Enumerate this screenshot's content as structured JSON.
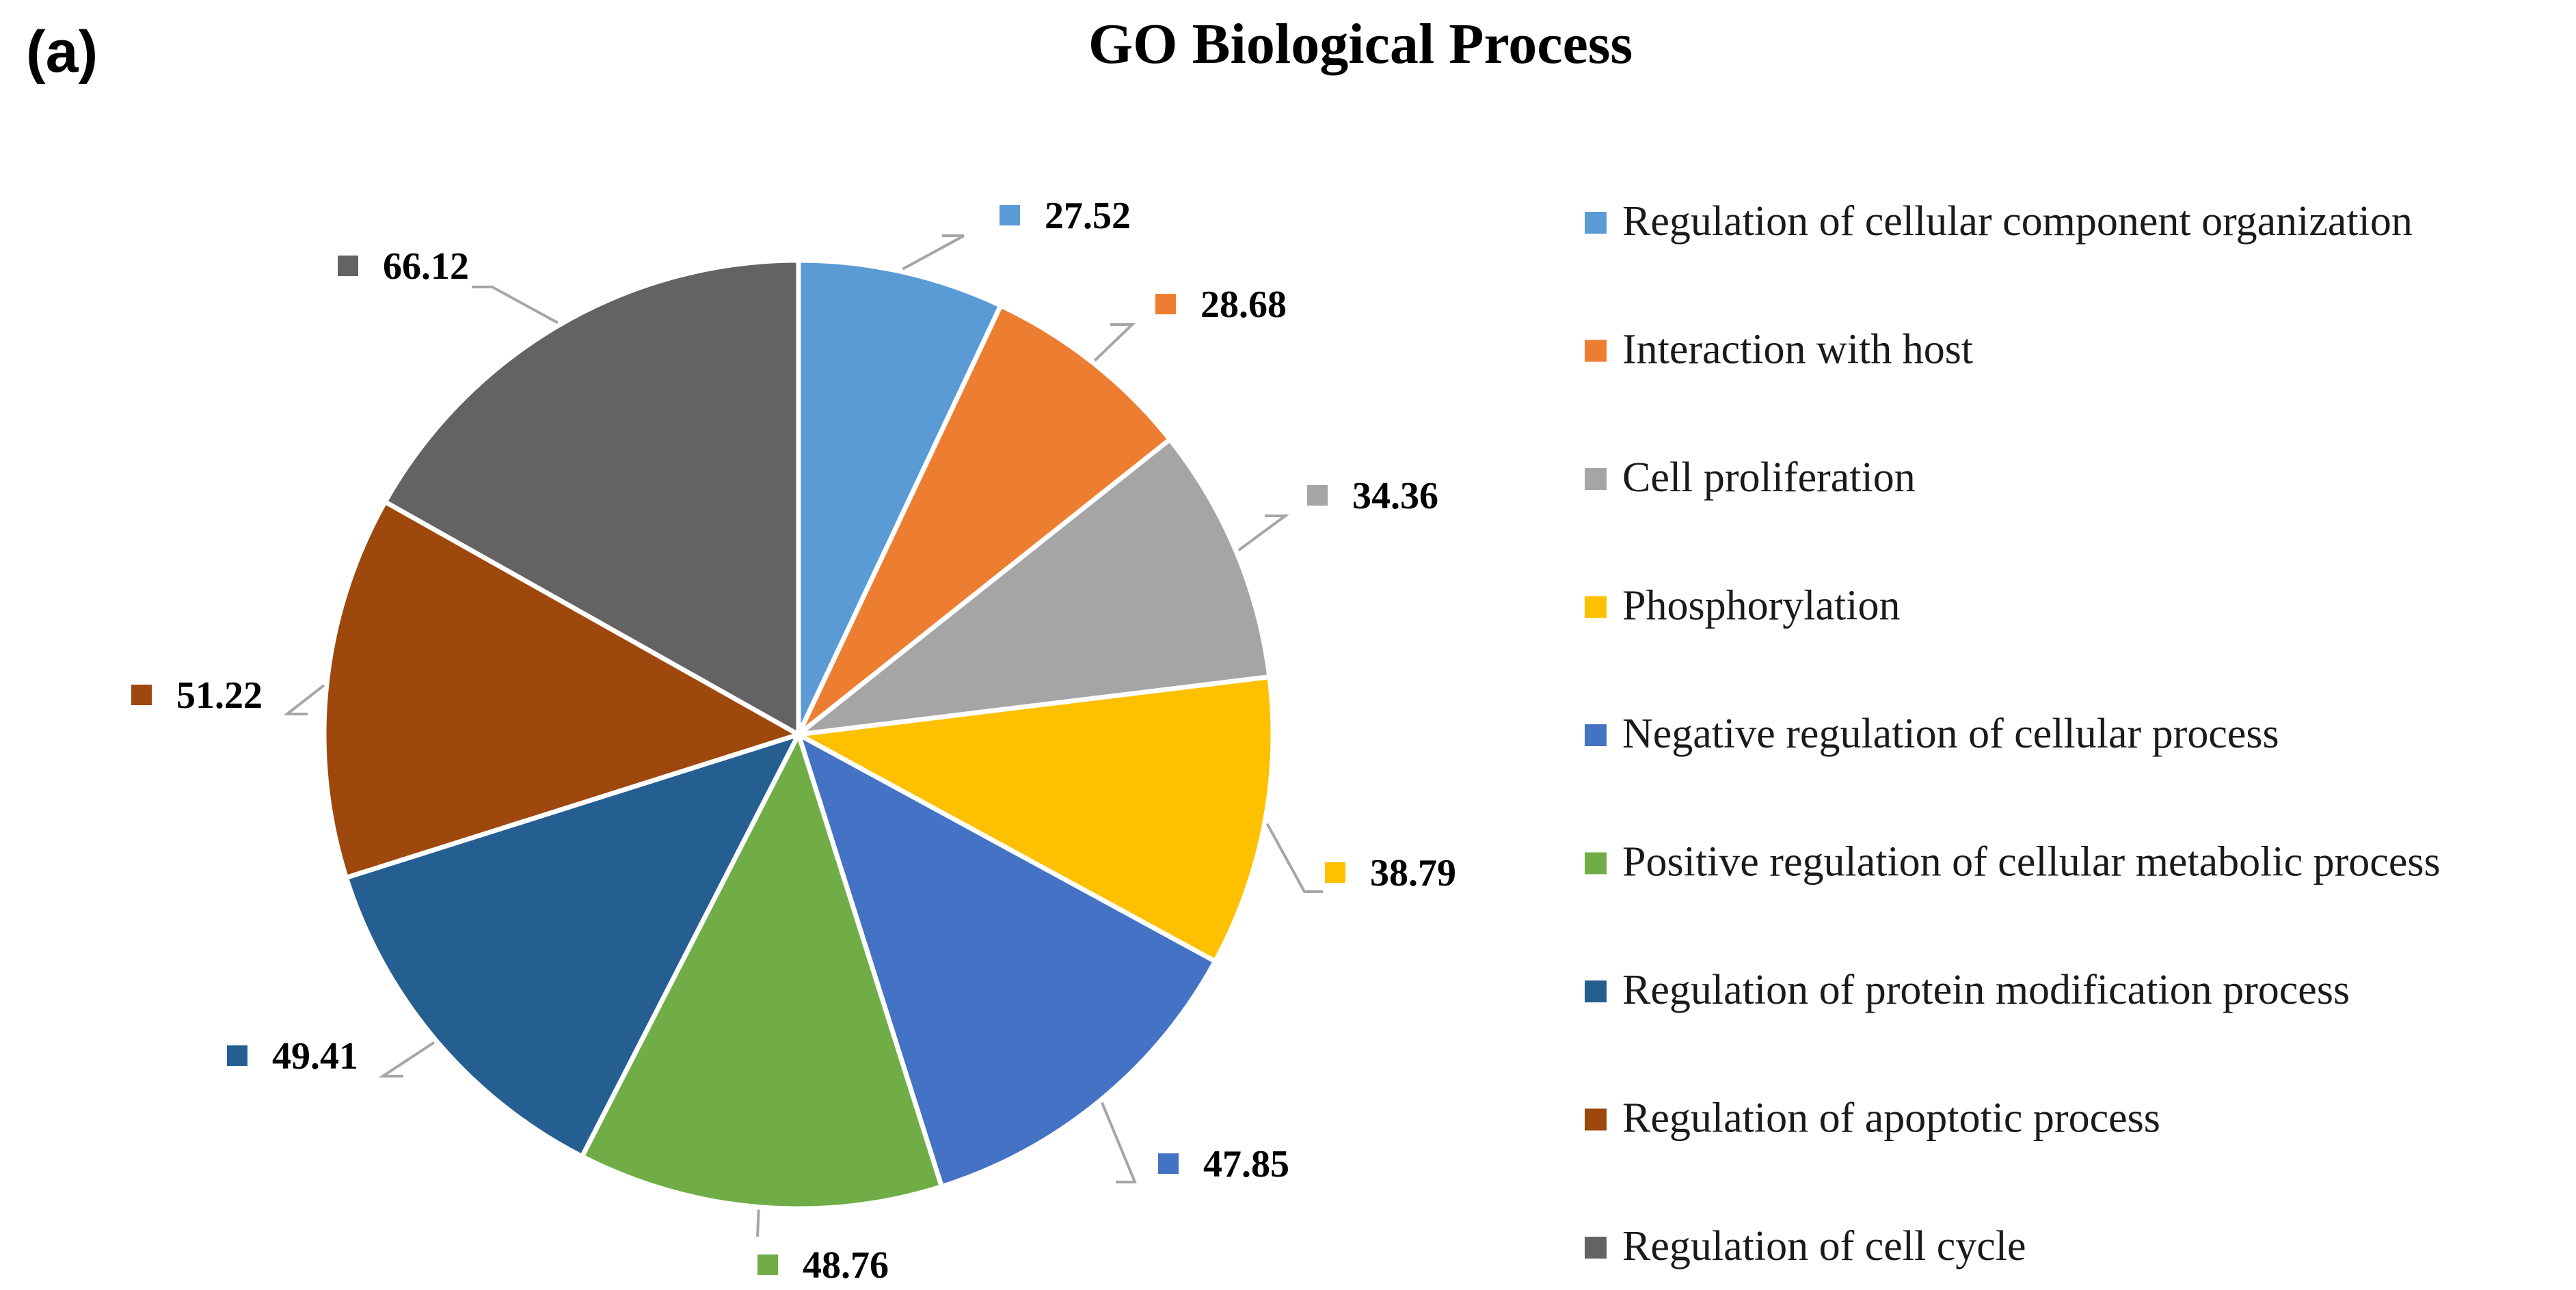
{
  "panel_label": "(a)",
  "chart_data": {
    "type": "pie",
    "title": "GO Biological Process",
    "categories": [
      "Regulation of cellular component organization",
      "Interaction with host",
      "Cell proliferation",
      "Phosphorylation",
      "Negative regulation of cellular process",
      "Positive regulation of cellular metabolic process",
      "Regulation of protein modification process",
      "Regulation of apoptotic process",
      "Regulation of cell cycle"
    ],
    "values": [
      27.52,
      28.68,
      34.36,
      38.79,
      47.85,
      48.76,
      49.41,
      51.22,
      66.12
    ],
    "value_labels": [
      "27.52",
      "28.68",
      "34.36",
      "38.79",
      "47.85",
      "48.76",
      "49.41",
      "51.22",
      "66.12"
    ],
    "colors": [
      "#5b9bd5",
      "#ed7d31",
      "#a5a5a5",
      "#ffc000",
      "#4472c4",
      "#70ad47",
      "#255e91",
      "#9e480e",
      "#636363"
    ],
    "legend_position": "right",
    "start_angle": "12 o'clock",
    "direction": "clockwise"
  }
}
